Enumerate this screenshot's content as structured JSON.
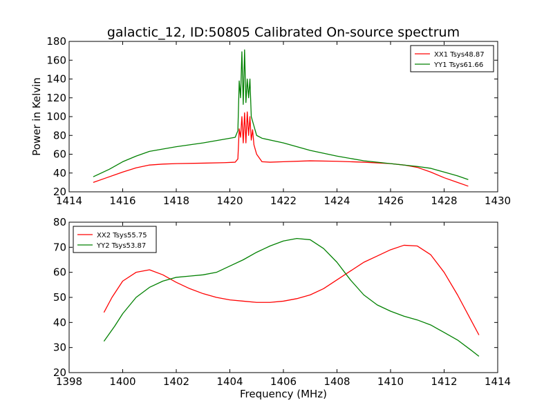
{
  "chart_data": [
    {
      "type": "line",
      "title": "galactic_12, ID:50805 Calibrated On-source spectrum",
      "xlabel": "",
      "ylabel": "Power in Kelvin",
      "xlim": [
        1414,
        1430
      ],
      "ylim": [
        20,
        180
      ],
      "xticks": [
        "1414",
        "1416",
        "1418",
        "1420",
        "1422",
        "1424",
        "1426",
        "1428",
        "1430"
      ],
      "yticks": [
        "20",
        "40",
        "60",
        "80",
        "100",
        "120",
        "140",
        "160",
        "180"
      ],
      "legend_position": "top-right",
      "series": [
        {
          "name": "XX1 Tsys48.87",
          "color": "#ff0000",
          "x": [
            1414.9,
            1415.4,
            1416.0,
            1416.5,
            1417.0,
            1417.5,
            1418.0,
            1419.0,
            1419.8,
            1420.2,
            1420.3,
            1420.35,
            1420.4,
            1420.45,
            1420.5,
            1420.55,
            1420.6,
            1420.65,
            1420.7,
            1420.75,
            1420.8,
            1420.85,
            1420.9,
            1420.95,
            1421.0,
            1421.2,
            1421.5,
            1422.0,
            1423.0,
            1424.0,
            1425.0,
            1426.0,
            1426.5,
            1427.0,
            1427.5,
            1428.0,
            1428.5,
            1428.9
          ],
          "values": [
            30,
            35,
            41,
            45.5,
            48.5,
            49.5,
            50,
            50.5,
            51,
            51.5,
            55,
            87,
            78,
            100,
            72,
            104,
            72,
            105,
            80,
            100,
            75,
            86,
            70,
            65,
            60,
            52,
            51.5,
            52,
            53,
            52.5,
            51.5,
            50,
            48.5,
            46,
            41,
            35,
            30,
            26
          ]
        },
        {
          "name": "YY1 Tsys61.66",
          "color": "#008000",
          "x": [
            1414.9,
            1415.5,
            1416.0,
            1416.5,
            1417.0,
            1418.0,
            1419.0,
            1420.0,
            1420.2,
            1420.3,
            1420.35,
            1420.4,
            1420.45,
            1420.5,
            1420.55,
            1420.6,
            1420.65,
            1420.7,
            1420.75,
            1420.8,
            1420.85,
            1420.9,
            1420.95,
            1421.0,
            1421.2,
            1422.0,
            1423.0,
            1424.0,
            1425.0,
            1426.0,
            1427.0,
            1427.5,
            1428.0,
            1428.5,
            1428.9
          ],
          "values": [
            36,
            44,
            52,
            58,
            63,
            68,
            72,
            77,
            78,
            85,
            138,
            120,
            169,
            113,
            171,
            115,
            140,
            120,
            140,
            100,
            95,
            90,
            85,
            80,
            77,
            72,
            64,
            58,
            53,
            50,
            47,
            45,
            41,
            37,
            33
          ]
        }
      ]
    },
    {
      "type": "line",
      "title": "",
      "xlabel": "Frequency (MHz)",
      "ylabel": "",
      "xlim": [
        1398,
        1414
      ],
      "ylim": [
        20,
        80
      ],
      "xticks": [
        "1398",
        "1400",
        "1402",
        "1404",
        "1406",
        "1408",
        "1410",
        "1412",
        "1414"
      ],
      "yticks": [
        "20",
        "30",
        "40",
        "50",
        "60",
        "70",
        "80"
      ],
      "legend_position": "top-left",
      "series": [
        {
          "name": "XX2 Tsys55.75",
          "color": "#ff0000",
          "x": [
            1399.3,
            1399.6,
            1400.0,
            1400.5,
            1401.0,
            1401.5,
            1402.0,
            1402.5,
            1403.0,
            1403.5,
            1404.0,
            1404.5,
            1405.0,
            1405.5,
            1406.0,
            1406.5,
            1407.0,
            1407.5,
            1408.0,
            1408.5,
            1409.0,
            1409.5,
            1410.0,
            1410.5,
            1411.0,
            1411.5,
            1412.0,
            1412.5,
            1413.0,
            1413.3
          ],
          "values": [
            44,
            50,
            56.5,
            60,
            61,
            59,
            56,
            53.5,
            51.5,
            50,
            49,
            48.5,
            48,
            48,
            48.5,
            49.5,
            51,
            53.5,
            57,
            60.5,
            64,
            66.5,
            69,
            70.8,
            70.5,
            67,
            60,
            51,
            41,
            35
          ]
        },
        {
          "name": "YY2 Tsys53.87",
          "color": "#008000",
          "x": [
            1399.3,
            1399.7,
            1400.0,
            1400.5,
            1401.0,
            1401.5,
            1402.0,
            1402.5,
            1403.0,
            1403.5,
            1404.0,
            1404.5,
            1405.0,
            1405.5,
            1406.0,
            1406.5,
            1407.0,
            1407.5,
            1408.0,
            1408.5,
            1409.0,
            1409.5,
            1410.0,
            1410.5,
            1411.0,
            1411.5,
            1412.0,
            1412.5,
            1413.0,
            1413.3
          ],
          "values": [
            32.5,
            38.5,
            43.5,
            50,
            54,
            56.5,
            58,
            58.5,
            59,
            60,
            62.5,
            65,
            68,
            70.5,
            72.5,
            73.5,
            73,
            69.5,
            64,
            57,
            51,
            47,
            44.5,
            42.5,
            41,
            39,
            36,
            33,
            29,
            26.5
          ]
        }
      ]
    }
  ]
}
